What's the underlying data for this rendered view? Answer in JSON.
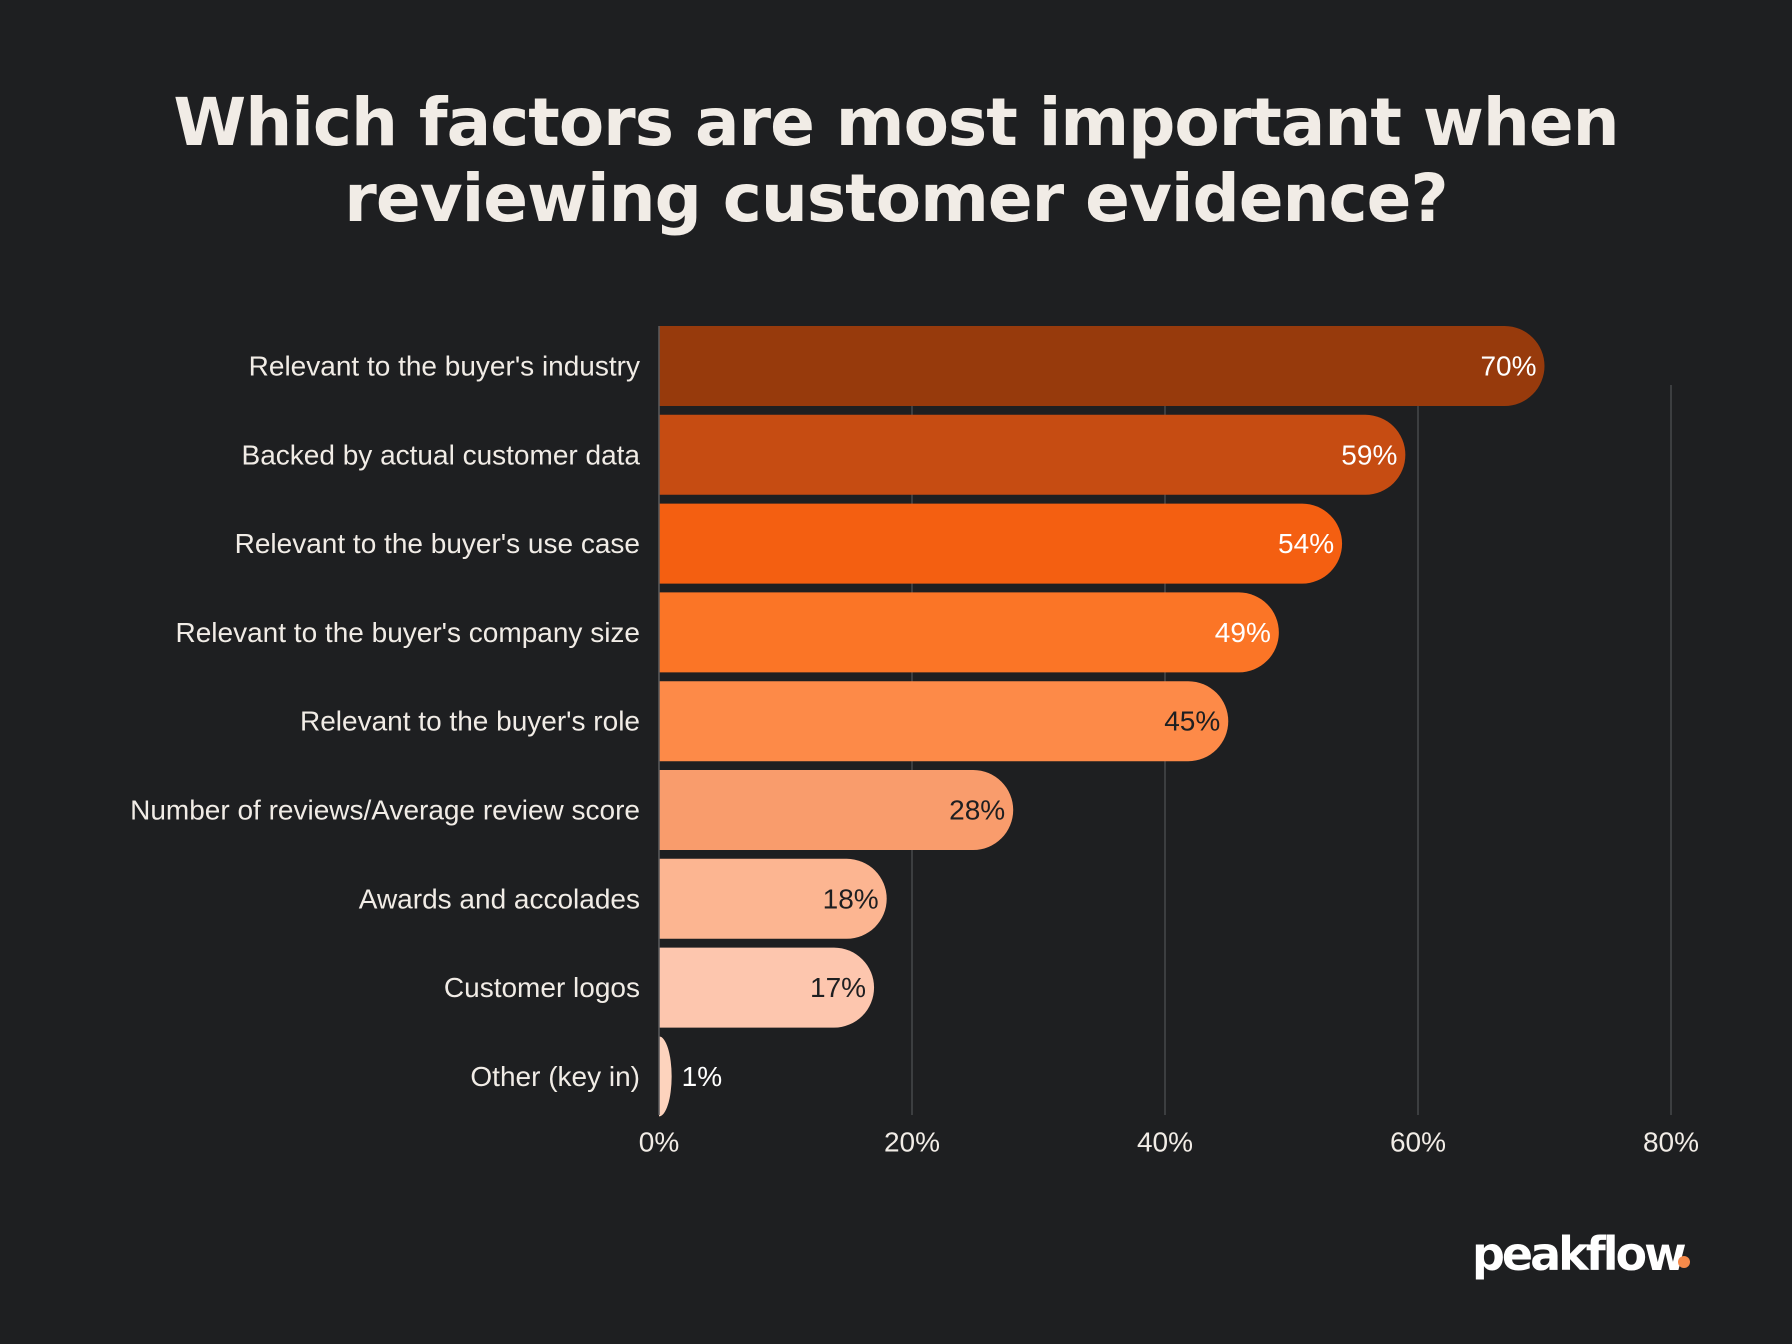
{
  "chart_data": {
    "type": "bar",
    "orientation": "horizontal",
    "title": "Which factors are most important when reviewing customer evidence?",
    "categories": [
      "Relevant to the buyer's industry",
      "Backed by actual customer data",
      "Relevant to the buyer's use case",
      "Relevant to the buyer's company size",
      "Relevant to the buyer's role",
      "Number of reviews/Average review score",
      "Awards and accolades",
      "Customer logos",
      "Other (key in)"
    ],
    "values": [
      70,
      59,
      54,
      49,
      45,
      28,
      18,
      17,
      1
    ],
    "value_labels": [
      "70%",
      "59%",
      "54%",
      "49%",
      "45%",
      "28%",
      "18%",
      "17%",
      "1%"
    ],
    "colors": [
      "#973a0c",
      "#c64c12",
      "#f45f11",
      "#fb7526",
      "#fd8a48",
      "#f99c6c",
      "#fcb591",
      "#fdc6ae",
      "#fdd3bd"
    ],
    "label_colors": [
      "#ffffff",
      "#ffffff",
      "#ffffff",
      "#ffffff",
      "#1e1f21",
      "#1e1f21",
      "#1e1f21",
      "#1e1f21",
      "#ffffff"
    ],
    "xlim": [
      0,
      80
    ],
    "x_ticks": [
      0,
      20,
      40,
      60,
      80
    ],
    "x_tick_labels": [
      "0%",
      "20%",
      "40%",
      "60%",
      "80%"
    ],
    "grid": "vertical",
    "legend": "none"
  },
  "brand": {
    "logo_text": "peakflow",
    "accent": "#f58a4b",
    "background": "#1e1f21"
  }
}
